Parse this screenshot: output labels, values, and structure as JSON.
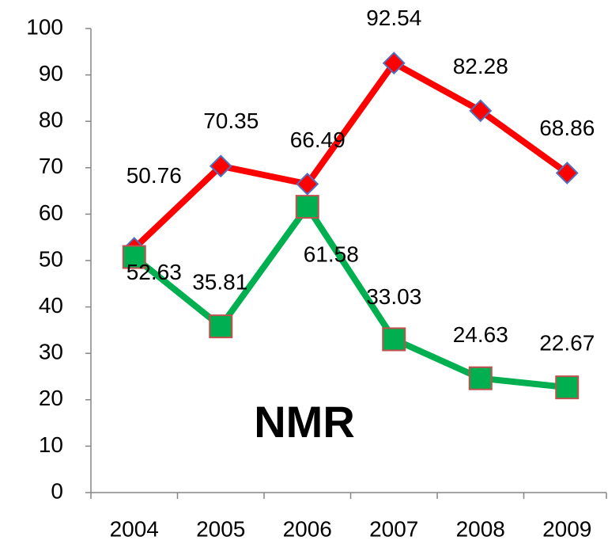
{
  "chart_data": {
    "type": "line",
    "annotation": "NMR",
    "categories": [
      "2004",
      "2005",
      "2006",
      "2007",
      "2008",
      "2009"
    ],
    "series": [
      {
        "color": "#ff0000",
        "marker": "diamond",
        "values": [
          52.63,
          70.35,
          66.49,
          92.54,
          82.28,
          68.86
        ]
      },
      {
        "color": "#00b050",
        "marker": "square",
        "values": [
          50.76,
          35.81,
          61.58,
          33.03,
          24.63,
          22.67
        ]
      }
    ],
    "ylim": [
      0,
      100
    ],
    "yticks": [
      0,
      10,
      20,
      30,
      40,
      50,
      60,
      70,
      80,
      90,
      100
    ],
    "grid": false
  }
}
